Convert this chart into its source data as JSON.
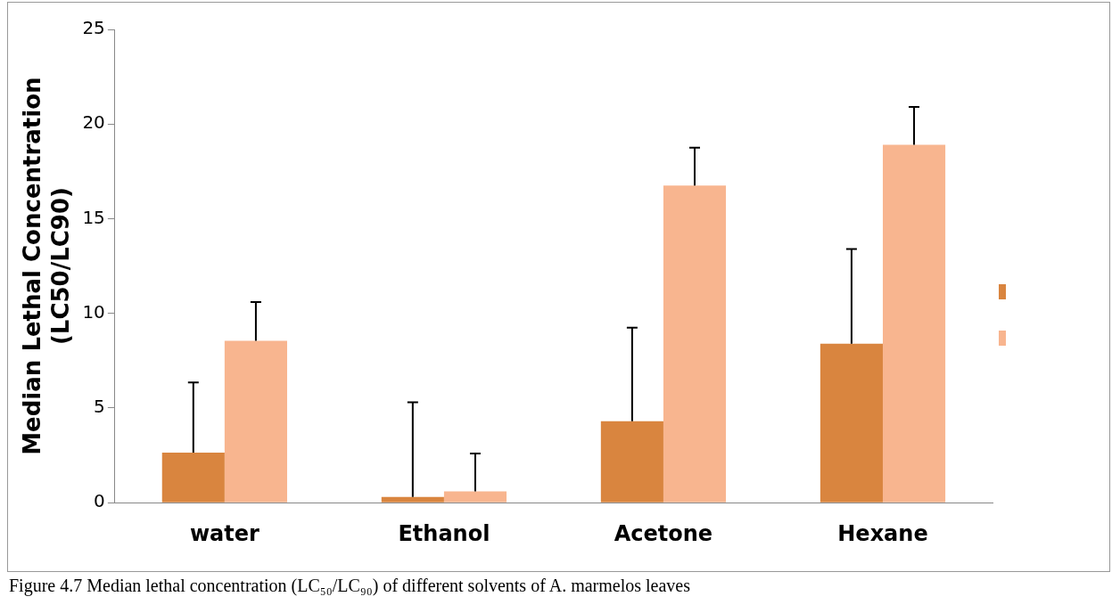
{
  "chart_data": {
    "type": "bar",
    "ylabel": "Median Lethal Concentration\n(LC50/LC90)",
    "categories": [
      "water",
      "Ethanol",
      "Acetone",
      "Hexane"
    ],
    "series": [
      {
        "color": "#d9853f",
        "values": [
          2.65,
          0.3,
          4.3,
          8.4
        ],
        "errors": [
          [
            2.65,
            6.35
          ],
          [
            0.3,
            5.3
          ],
          [
            4.3,
            9.25
          ],
          [
            8.4,
            13.4
          ]
        ]
      },
      {
        "color": "#f8b58f",
        "values": [
          8.55,
          0.6,
          16.75,
          18.9
        ],
        "errors": [
          [
            8.55,
            10.6
          ],
          [
            0.6,
            2.6
          ],
          [
            16.75,
            18.75
          ],
          [
            18.9,
            20.9
          ]
        ]
      }
    ],
    "ylim": [
      0,
      25
    ],
    "yticks": [
      0,
      5,
      10,
      15,
      20,
      25
    ],
    "grid": false,
    "annotations": [
      "Figure 4.7 Median lethal concentration (LC₅₀/LC₉₀) of different solvents of A. marmelos leaves"
    ]
  }
}
